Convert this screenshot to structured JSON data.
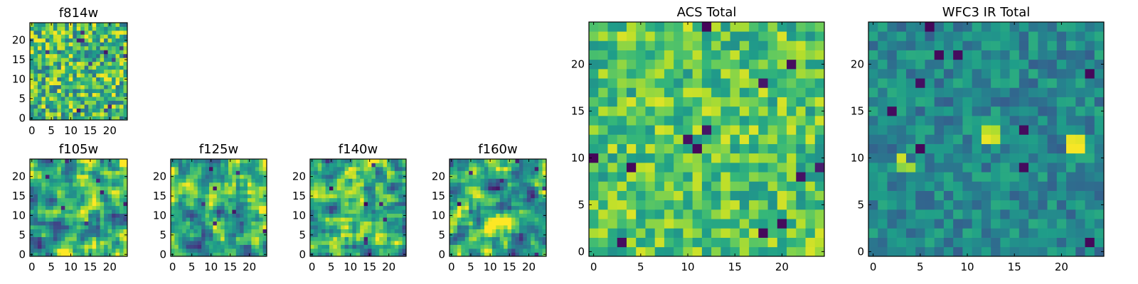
{
  "chart_data": [
    {
      "type": "heatmap",
      "title": "f814w",
      "xticks": [
        "0",
        "5",
        "10",
        "15",
        "20"
      ],
      "yticks": [
        "0",
        "5",
        "10",
        "15",
        "20"
      ],
      "xlim": [
        -0.5,
        24.5
      ],
      "ylim": [
        -0.5,
        24.5
      ],
      "grid": false,
      "colormap": "viridis",
      "values": "approximate random per-pixel texture, 25x25",
      "seed": 11,
      "style": "mid"
    },
    {
      "type": "heatmap",
      "title": "f105w",
      "xticks": [
        "0",
        "5",
        "10",
        "15",
        "20"
      ],
      "yticks": [
        "0",
        "5",
        "10",
        "15",
        "20"
      ],
      "xlim": [
        -0.5,
        24.5
      ],
      "ylim": [
        -0.5,
        24.5
      ],
      "grid": false,
      "colormap": "viridis",
      "values": "approximate smooth texture, 25x25",
      "seed": 22,
      "style": "smooth"
    },
    {
      "type": "heatmap",
      "title": "f125w",
      "xticks": [
        "0",
        "5",
        "10",
        "15",
        "20"
      ],
      "yticks": [
        "0",
        "5",
        "10",
        "15",
        "20"
      ],
      "xlim": [
        -0.5,
        24.5
      ],
      "ylim": [
        -0.5,
        24.5
      ],
      "grid": false,
      "colormap": "viridis",
      "values": "approximate smooth texture, 25x25",
      "seed": 33,
      "style": "smooth"
    },
    {
      "type": "heatmap",
      "title": "f140w",
      "xticks": [
        "0",
        "5",
        "10",
        "15",
        "20"
      ],
      "yticks": [
        "0",
        "5",
        "10",
        "15",
        "20"
      ],
      "xlim": [
        -0.5,
        24.5
      ],
      "ylim": [
        -0.5,
        24.5
      ],
      "grid": false,
      "colormap": "viridis",
      "values": "approximate smooth texture, 25x25",
      "seed": 44,
      "style": "smooth"
    },
    {
      "type": "heatmap",
      "title": "f160w",
      "xticks": [
        "0",
        "5",
        "10",
        "15",
        "20"
      ],
      "yticks": [
        "0",
        "5",
        "10",
        "15",
        "20"
      ],
      "xlim": [
        -0.5,
        24.5
      ],
      "ylim": [
        -0.5,
        24.5
      ],
      "grid": false,
      "colormap": "viridis",
      "values": "approximate smooth texture, 25x25",
      "seed": 55,
      "style": "smooth"
    },
    {
      "type": "heatmap",
      "title": "ACS Total",
      "xticks": [
        "0",
        "5",
        "10",
        "15",
        "20"
      ],
      "yticks": [
        "0",
        "5",
        "10",
        "15",
        "20"
      ],
      "xlim": [
        -0.5,
        24.5
      ],
      "ylim": [
        -0.5,
        24.5
      ],
      "grid": false,
      "colormap": "viridis",
      "values": "approximate random per-pixel texture, 25x25",
      "seed": 66,
      "style": "bright"
    },
    {
      "type": "heatmap",
      "title": "WFC3 IR Total",
      "xticks": [
        "0",
        "5",
        "10",
        "15",
        "20"
      ],
      "yticks": [
        "0",
        "5",
        "10",
        "15",
        "20"
      ],
      "xlim": [
        -0.5,
        24.5
      ],
      "ylim": [
        -0.5,
        24.5
      ],
      "grid": false,
      "colormap": "viridis",
      "values": "approximate random per-pixel texture, 25x25",
      "seed": 77,
      "style": "dark",
      "bright_pixels": [
        [
          3,
          10,
          0.93
        ],
        [
          4,
          9,
          0.86
        ],
        [
          3,
          9,
          0.82
        ],
        [
          12,
          12,
          0.97
        ],
        [
          13,
          12,
          0.93
        ],
        [
          12,
          13,
          0.9
        ],
        [
          13,
          13,
          0.88
        ],
        [
          21,
          11,
          0.99
        ],
        [
          22,
          11,
          0.99
        ],
        [
          21,
          12,
          0.97
        ],
        [
          22,
          12,
          0.96
        ]
      ],
      "dark_pixels": [
        [
          6,
          24,
          0.02
        ],
        [
          7,
          21,
          0.02
        ],
        [
          9,
          21,
          0.03
        ],
        [
          23,
          19,
          0.02
        ],
        [
          2,
          15,
          0.03
        ],
        [
          5,
          18,
          0.04
        ],
        [
          16,
          13,
          0.03
        ],
        [
          5,
          11,
          0.02
        ],
        [
          16,
          9,
          0.03
        ],
        [
          23,
          1,
          0.02
        ]
      ]
    }
  ],
  "colors": {
    "colormap": [
      "#440154",
      "#482878",
      "#3e4989",
      "#31688e",
      "#26828e",
      "#1f9e89",
      "#35b779",
      "#6ece58",
      "#b5de2b",
      "#fde725"
    ]
  }
}
